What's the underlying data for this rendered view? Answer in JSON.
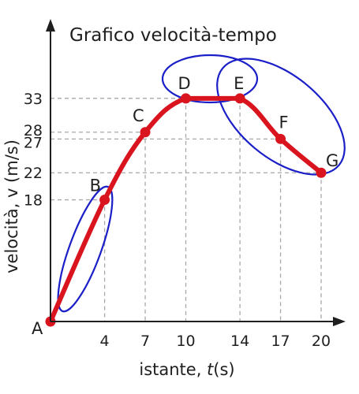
{
  "chart_data": {
    "type": "line",
    "title": "Grafico velocità-tempo",
    "xlabel": {
      "prefix": "istante, ",
      "var": "t",
      "suffix": "(s)"
    },
    "ylabel": "velocità, v (m/s)",
    "xlim": [
      0,
      22
    ],
    "ylim": [
      0,
      38
    ],
    "x_ticks": [
      4,
      7,
      10,
      14,
      17,
      20
    ],
    "y_ticks": [
      18,
      22,
      27,
      28,
      33
    ],
    "grid": "dashed guides to points",
    "legend": "none",
    "series": [
      {
        "points": [
          {
            "label": "A",
            "x": 0,
            "y": 0
          },
          {
            "label": "B",
            "x": 4,
            "y": 18
          },
          {
            "label": "C",
            "x": 7,
            "y": 28
          },
          {
            "label": "D",
            "x": 10,
            "y": 33
          },
          {
            "label": "E",
            "x": 14,
            "y": 33
          },
          {
            "label": "F",
            "x": 17,
            "y": 27
          },
          {
            "label": "G",
            "x": 20,
            "y": 22
          }
        ]
      }
    ],
    "line_color": "#d9141e",
    "ellipse_color": "#1b1fc7",
    "axis_color": "#1f1f1f",
    "grid_color": "#a8a8a8"
  }
}
